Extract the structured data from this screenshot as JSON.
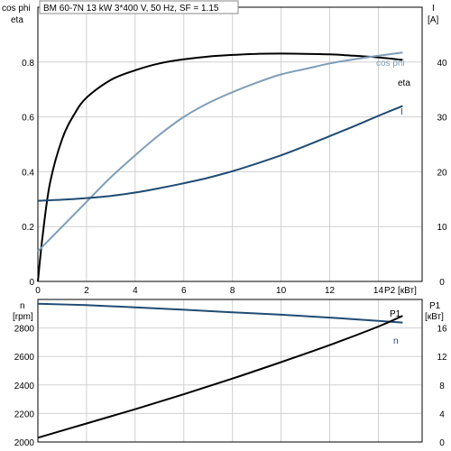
{
  "chart_data": [
    {
      "type": "line",
      "title": "BM 60-7N   13 kW   3*400 V, 50 Hz, SF = 1.15",
      "xlabel": "P2 [кВт]",
      "x_ticks": [
        "0",
        "2",
        "4",
        "6",
        "8",
        "10",
        "12",
        "14"
      ],
      "xlim": [
        0,
        15.8
      ],
      "y_left_label_top": "cos phi",
      "y_left_label_bottom": "eta",
      "y_left_ticks": [
        "0",
        "0.2",
        "0.4",
        "0.6",
        "0.8"
      ],
      "ylim_left": [
        0,
        1.0
      ],
      "y_right_label_top": "I",
      "y_right_label_bottom": "[A]",
      "y_right_ticks": [
        "0",
        "10",
        "20",
        "30",
        "40"
      ],
      "ylim_right": [
        0,
        50
      ],
      "grid": true,
      "series": [
        {
          "name": "eta",
          "axis": "left",
          "color": "#000000",
          "x": [
            0,
            0.2,
            0.5,
            1,
            1.5,
            2,
            3,
            4,
            5,
            6,
            7,
            8,
            9,
            10,
            11,
            12,
            13,
            14,
            15
          ],
          "y": [
            0,
            0.17,
            0.36,
            0.52,
            0.61,
            0.67,
            0.735,
            0.77,
            0.795,
            0.81,
            0.82,
            0.826,
            0.83,
            0.831,
            0.83,
            0.828,
            0.823,
            0.817,
            0.808
          ]
        },
        {
          "name": "cos phi",
          "axis": "left",
          "color": "#7f9db8",
          "x": [
            0,
            1,
            2,
            3,
            4,
            5,
            6,
            7,
            8,
            9,
            10,
            11,
            12,
            13,
            14,
            15
          ],
          "y": [
            0.11,
            0.2,
            0.29,
            0.38,
            0.46,
            0.535,
            0.6,
            0.65,
            0.69,
            0.725,
            0.755,
            0.775,
            0.795,
            0.81,
            0.823,
            0.835
          ]
        },
        {
          "name": "I",
          "axis": "right",
          "color": "#1f4b73",
          "x": [
            0,
            1,
            2,
            3,
            4,
            5,
            6,
            7,
            8,
            9,
            10,
            11,
            12,
            13,
            14,
            15
          ],
          "y": [
            14.7,
            14.9,
            15.2,
            15.6,
            16.2,
            17,
            17.9,
            18.9,
            20.1,
            21.5,
            23,
            24.7,
            26.5,
            28.3,
            30.2,
            32
          ]
        }
      ]
    },
    {
      "type": "line",
      "x_ticks": [
        "0",
        "2",
        "4",
        "6",
        "8",
        "10",
        "12",
        "14"
      ],
      "xlim": [
        0,
        15.8
      ],
      "y_left_label_top": "n",
      "y_left_label_bottom": "[rpm]",
      "y_left_ticks": [
        "2000",
        "2200",
        "2400",
        "2600",
        "2800"
      ],
      "ylim_left": [
        2000,
        3000
      ],
      "y_right_label_top": "P1",
      "y_right_label_bottom": "[кВт]",
      "y_right_ticks": [
        "0",
        "4",
        "8",
        "12",
        "16"
      ],
      "ylim_right": [
        0,
        20
      ],
      "grid": true,
      "series": [
        {
          "name": "n",
          "axis": "left",
          "color": "#1f4b73",
          "x": [
            0,
            2,
            4,
            6,
            8,
            10,
            12,
            14,
            15
          ],
          "y": [
            2970,
            2960,
            2945,
            2928,
            2910,
            2893,
            2873,
            2850,
            2838
          ]
        },
        {
          "name": "P1",
          "axis": "right",
          "color": "#000000",
          "x": [
            0,
            2,
            4,
            6,
            8,
            10,
            12,
            14,
            15
          ],
          "y": [
            0.6,
            2.6,
            4.6,
            6.7,
            8.9,
            11.2,
            13.6,
            16.2,
            17.7
          ]
        }
      ]
    }
  ]
}
